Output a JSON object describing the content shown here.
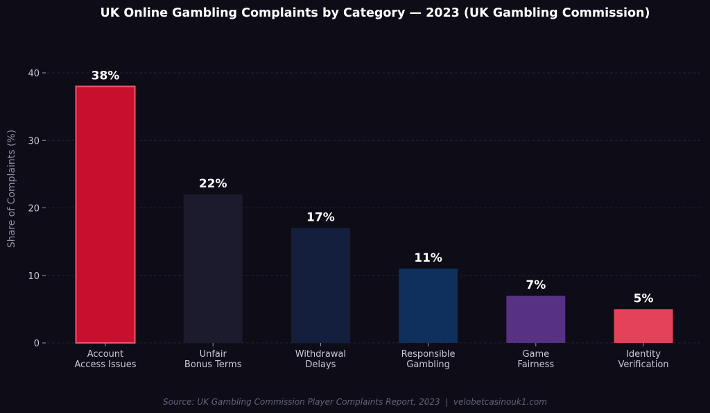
{
  "chart_data": {
    "type": "bar",
    "title": "UK Online Gambling Complaints by Category — 2023 (UK Gambling Commission)",
    "xlabel": "",
    "ylabel": "Share of Complaints (%)",
    "ylim": [
      0,
      40
    ],
    "yticks": [
      0,
      10,
      20,
      30,
      40
    ],
    "grid": true,
    "categories": [
      [
        "Account",
        "Access Issues"
      ],
      [
        "Unfair",
        "Bonus Terms"
      ],
      [
        "Withdrawal",
        "Delays"
      ],
      [
        "Responsible",
        "Gambling"
      ],
      [
        "Game",
        "Fairness"
      ],
      [
        "Identity",
        "Verification"
      ]
    ],
    "values": [
      38,
      22,
      17,
      11,
      7,
      5
    ],
    "value_labels": [
      "38%",
      "22%",
      "17%",
      "11%",
      "7%",
      "5%"
    ],
    "colors": [
      "#c8102e",
      "#1c1a2d",
      "#131f3d",
      "#0f2f5c",
      "#563184",
      "#e4425a"
    ],
    "highlight_outline": "#f0566f",
    "source": "Source: UK Gambling Commission Player Complaints Report, 2023  |  velobetcasinouk1.com"
  }
}
